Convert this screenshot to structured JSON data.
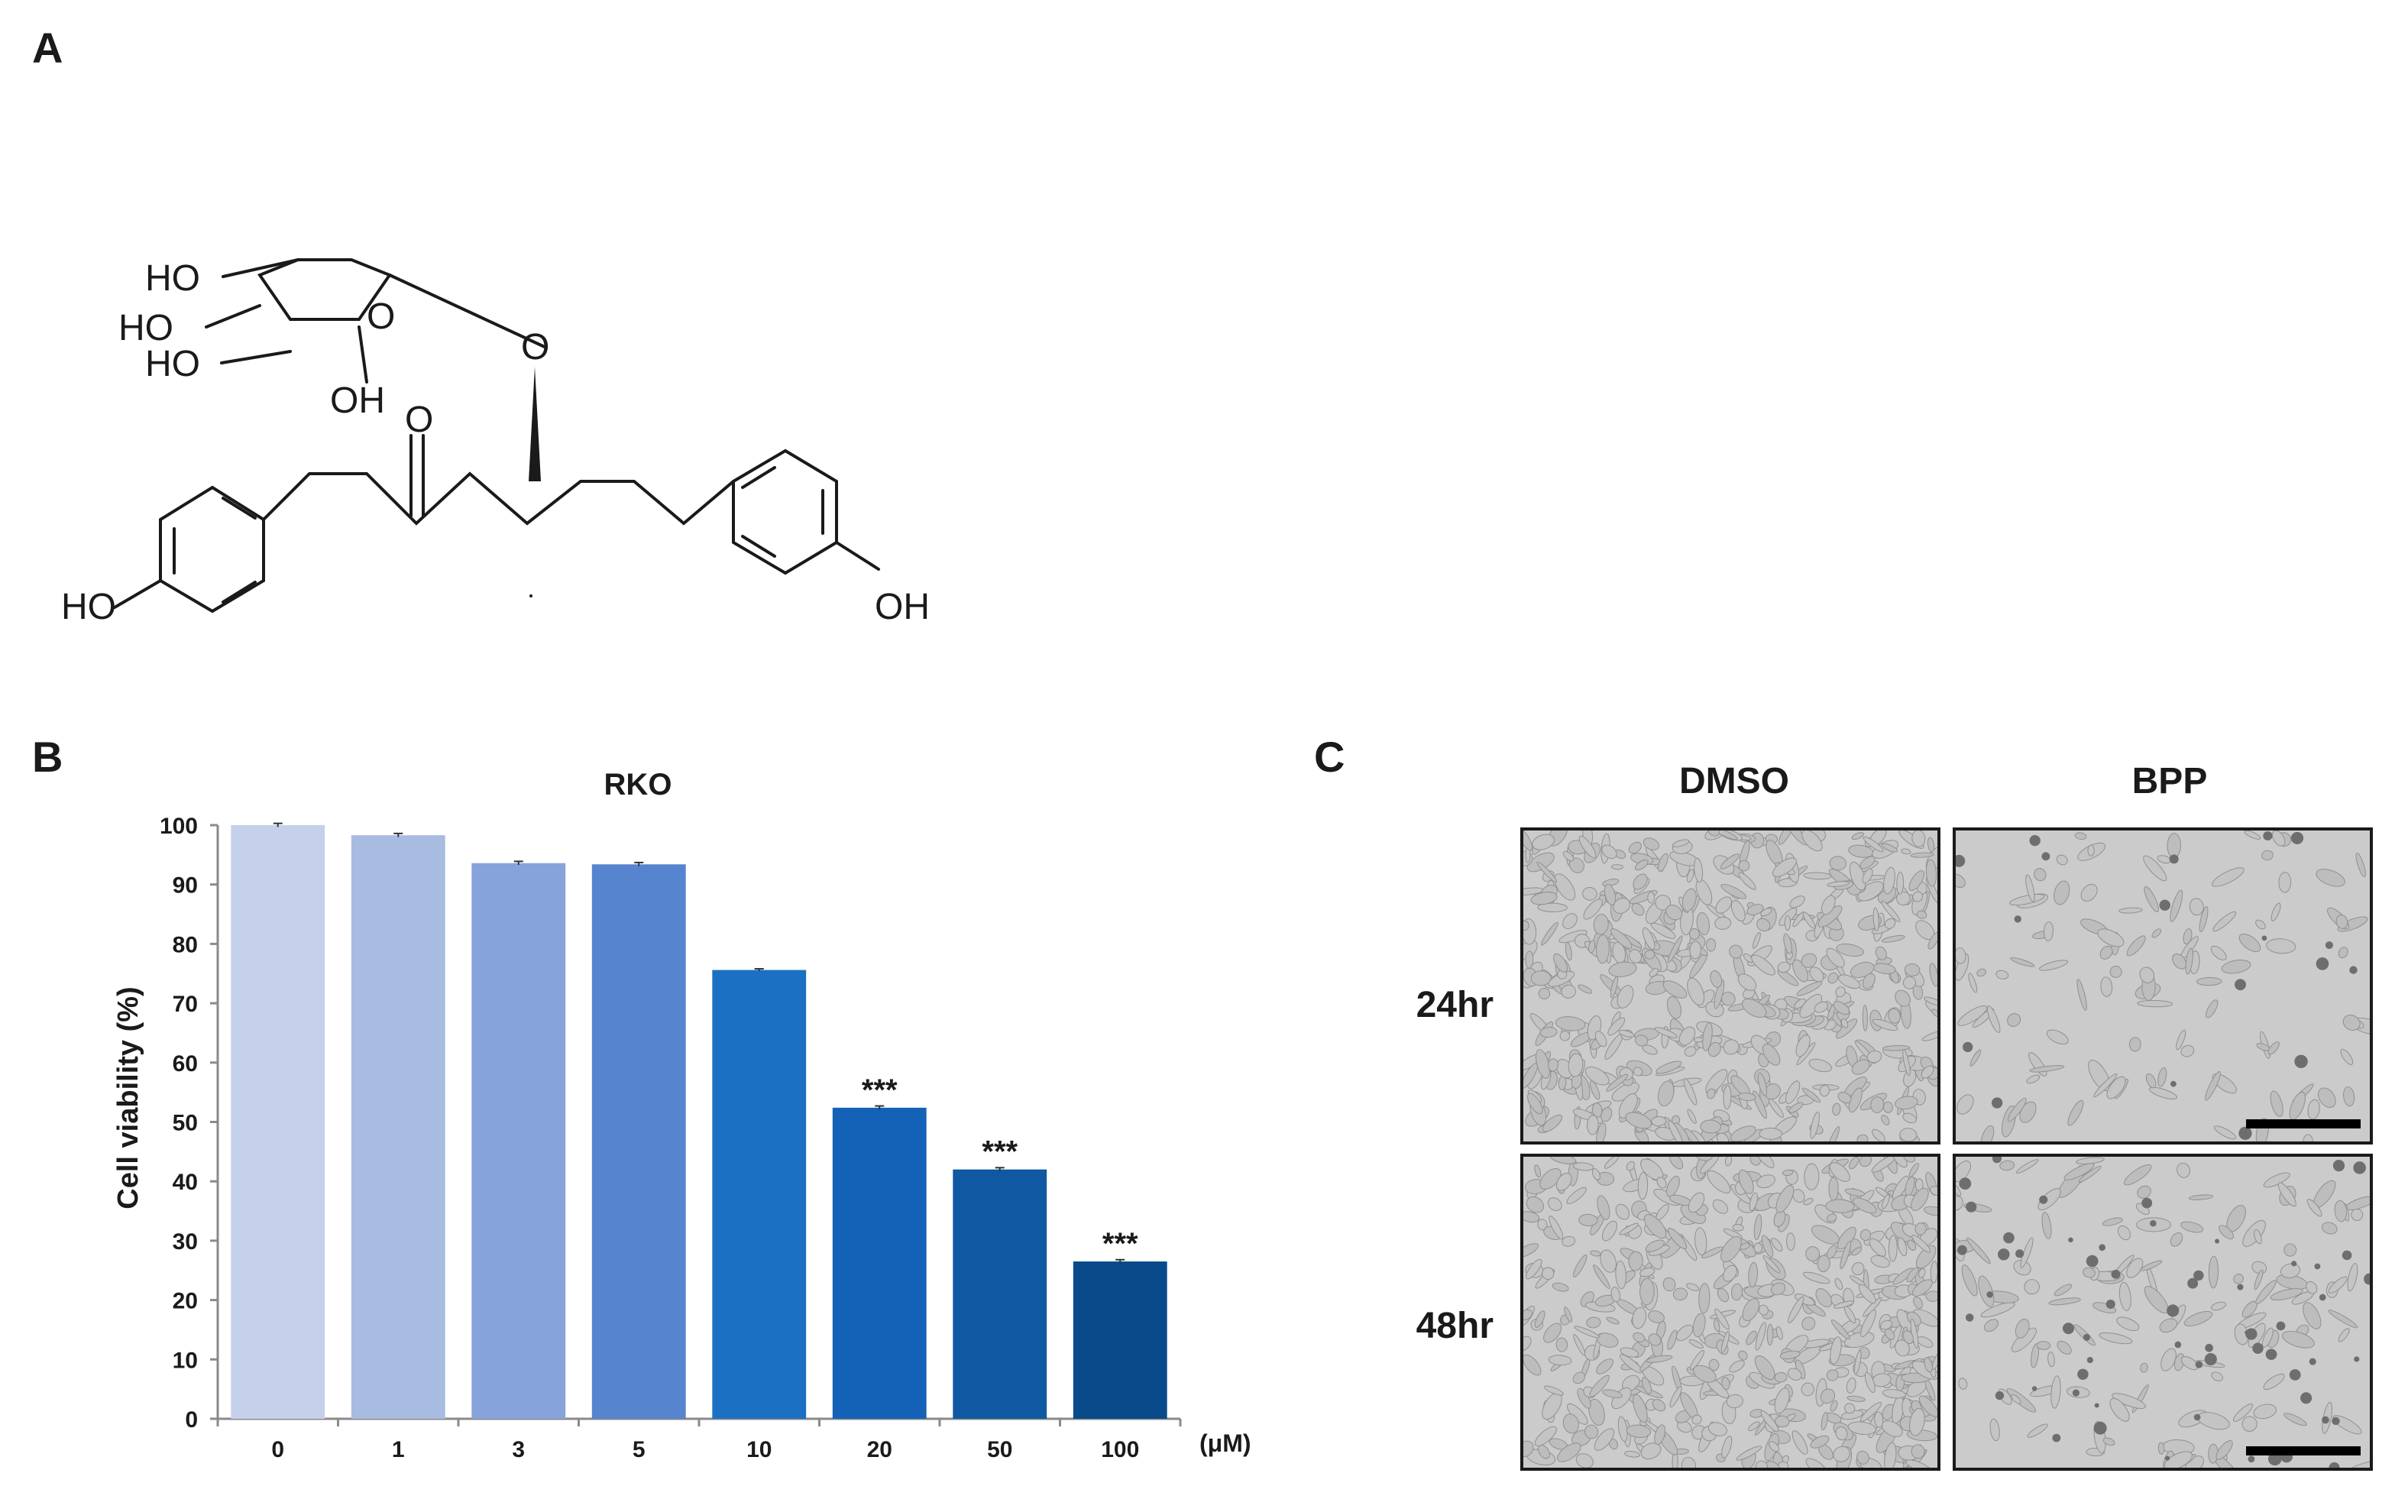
{
  "panels": {
    "a": "A",
    "b": "B",
    "c": "C"
  },
  "structure": {
    "labels": {
      "ho1": "HO",
      "ho2": "HO",
      "ho3": "HO",
      "oh_sugar": "OH",
      "o_ring": "O",
      "o_glyco": "O",
      "o_keto": "O",
      "ho_left": "HO",
      "oh_right": "OH"
    }
  },
  "chart_data": {
    "type": "bar",
    "title": "RKO",
    "ylabel": "Cell viability (%)",
    "xlabel": "",
    "unit_label": "(μM)",
    "categories": [
      "0",
      "1",
      "3",
      "5",
      "10",
      "20",
      "50",
      "100"
    ],
    "values": [
      100,
      98.3,
      93.6,
      93.4,
      75.6,
      52.4,
      42.0,
      26.5
    ],
    "errors": [
      0.3,
      0.3,
      0.3,
      0.3,
      0.2,
      0.3,
      0.3,
      0.3
    ],
    "significance": [
      "",
      "",
      "",
      "",
      "",
      "***",
      "***",
      "***"
    ],
    "bar_colors": [
      "#c5d1ea",
      "#a8bbe0",
      "#87a3db",
      "#5784cf",
      "#1b70c3",
      "#1462b8",
      "#0f58a2",
      "#094a8a"
    ],
    "ylim": [
      0,
      100
    ],
    "yticks": [
      0,
      10,
      20,
      30,
      40,
      50,
      60,
      70,
      80,
      90,
      100
    ],
    "grid": false,
    "legend": "none"
  },
  "micrographs": {
    "columns": [
      "DMSO",
      "BPP"
    ],
    "rows": [
      "24hr",
      "48hr"
    ]
  }
}
